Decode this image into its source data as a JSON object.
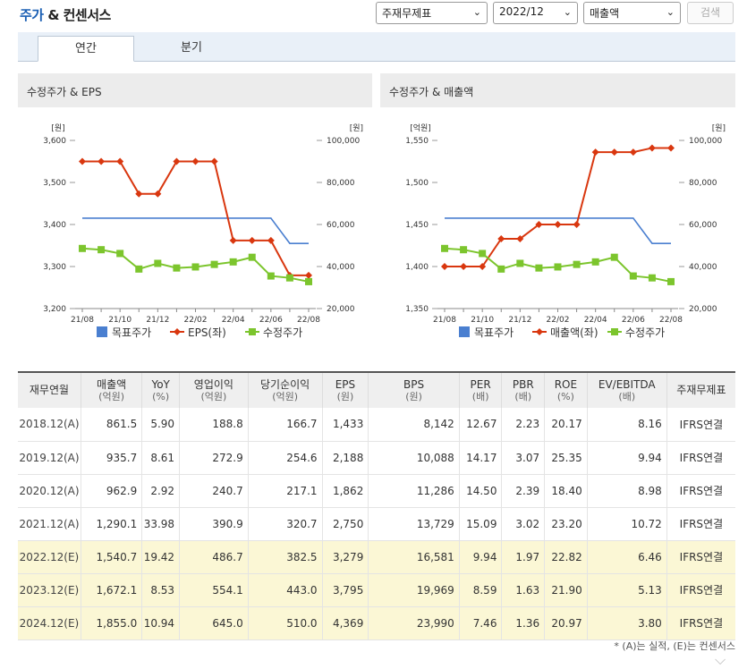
{
  "header": {
    "title_main": "주가",
    "title_rest": " & 컨센서스",
    "select_type": "주재무제표",
    "select_period": "2022/12",
    "select_item": "매출액",
    "search_label": "검색"
  },
  "tabs": [
    {
      "label": "연간"
    },
    {
      "label": "분기"
    }
  ],
  "colors": {
    "target": "#4a7fd0",
    "eps": "#d9370f",
    "price": "#7cc52d"
  },
  "chart_data": [
    {
      "type": "line",
      "title": "수정주가 & EPS",
      "x": [
        "21/08",
        "21/09",
        "21/10",
        "21/11",
        "21/12",
        "22/01",
        "22/02",
        "22/03",
        "22/04",
        "22/05",
        "22/06",
        "22/07",
        "22/08"
      ],
      "x_tick_labels": [
        "21/08",
        "21/10",
        "21/12",
        "22/02",
        "22/04",
        "22/06",
        "22/08"
      ],
      "left_axis": {
        "unit": "[원]",
        "ticks": [
          "3,600",
          "3,500",
          "3,400",
          "3,300",
          "3,200"
        ],
        "range": [
          3200,
          3600
        ]
      },
      "right_axis": {
        "unit": "[원]",
        "ticks": [
          "100,000",
          "80,000",
          "60,000",
          "40,000",
          "20,000"
        ],
        "range": [
          20000,
          100000
        ]
      },
      "series": [
        {
          "name": "목표주가",
          "axis": "right",
          "values": [
            63000,
            63000,
            63000,
            63000,
            63000,
            63000,
            63000,
            63000,
            63000,
            63000,
            63000,
            51000,
            51000
          ]
        },
        {
          "name": "EPS(좌)",
          "axis": "left",
          "values": [
            3550,
            3550,
            3550,
            3473,
            3473,
            3550,
            3550,
            3550,
            3362,
            3362,
            3362,
            3279,
            3279
          ]
        },
        {
          "name": "수정주가",
          "axis": "right",
          "values": [
            48600,
            48000,
            46200,
            38800,
            41500,
            39300,
            39800,
            41000,
            42200,
            44400,
            35500,
            34600,
            32800
          ]
        }
      ]
    },
    {
      "type": "line",
      "title": "수정주가 & 매출액",
      "x": [
        "21/08",
        "21/09",
        "21/10",
        "21/11",
        "21/12",
        "22/01",
        "22/02",
        "22/03",
        "22/04",
        "22/05",
        "22/06",
        "22/07",
        "22/08"
      ],
      "x_tick_labels": [
        "21/08",
        "21/10",
        "21/12",
        "22/02",
        "22/04",
        "22/06",
        "22/08"
      ],
      "left_axis": {
        "unit": "[억원]",
        "ticks": [
          "1,550",
          "1,500",
          "1,450",
          "1,400",
          "1,350"
        ],
        "range": [
          1350,
          1550
        ]
      },
      "right_axis": {
        "unit": "[원]",
        "ticks": [
          "100,000",
          "80,000",
          "60,000",
          "40,000",
          "20,000"
        ],
        "range": [
          20000,
          100000
        ]
      },
      "series": [
        {
          "name": "목표주가",
          "axis": "right",
          "values": [
            63000,
            63000,
            63000,
            63000,
            63000,
            63000,
            63000,
            63000,
            63000,
            63000,
            63000,
            51000,
            51000
          ]
        },
        {
          "name": "매출액(좌)",
          "axis": "left",
          "values": [
            1400,
            1400,
            1400,
            1433,
            1433,
            1450,
            1450,
            1450,
            1536,
            1536,
            1536,
            1541,
            1541
          ]
        },
        {
          "name": "수정주가",
          "axis": "right",
          "values": [
            48600,
            48000,
            46200,
            38800,
            41500,
            39300,
            39800,
            41000,
            42200,
            44400,
            35500,
            34600,
            32800
          ]
        }
      ]
    }
  ],
  "table": {
    "headers": [
      {
        "label": "재무연월",
        "unit": ""
      },
      {
        "label": "매출액",
        "unit": "(억원)"
      },
      {
        "label": "YoY",
        "unit": "(%)"
      },
      {
        "label": "영업이익",
        "unit": "(억원)"
      },
      {
        "label": "당기순이익",
        "unit": "(억원)"
      },
      {
        "label": "EPS",
        "unit": "(원)"
      },
      {
        "label": "BPS",
        "unit": "(원)"
      },
      {
        "label": "PER",
        "unit": "(배)"
      },
      {
        "label": "PBR",
        "unit": "(배)"
      },
      {
        "label": "ROE",
        "unit": "(%)"
      },
      {
        "label": "EV/EBITDA",
        "unit": "(배)"
      },
      {
        "label": "주재무제표",
        "unit": ""
      }
    ],
    "rows": [
      {
        "estimate": false,
        "cells": [
          "2018.12(A)",
          "861.5",
          "5.90",
          "188.8",
          "166.7",
          "1,433",
          "8,142",
          "12.67",
          "2.23",
          "20.17",
          "8.16",
          "IFRS연결"
        ]
      },
      {
        "estimate": false,
        "cells": [
          "2019.12(A)",
          "935.7",
          "8.61",
          "272.9",
          "254.6",
          "2,188",
          "10,088",
          "14.17",
          "3.07",
          "25.35",
          "9.94",
          "IFRS연결"
        ]
      },
      {
        "estimate": false,
        "cells": [
          "2020.12(A)",
          "962.9",
          "2.92",
          "240.7",
          "217.1",
          "1,862",
          "11,286",
          "14.50",
          "2.39",
          "18.40",
          "8.98",
          "IFRS연결"
        ]
      },
      {
        "estimate": false,
        "cells": [
          "2021.12(A)",
          "1,290.1",
          "33.98",
          "390.9",
          "320.7",
          "2,750",
          "13,729",
          "15.09",
          "3.02",
          "23.20",
          "10.72",
          "IFRS연결"
        ]
      },
      {
        "estimate": true,
        "cells": [
          "2022.12(E)",
          "1,540.7",
          "19.42",
          "486.7",
          "382.5",
          "3,279",
          "16,581",
          "9.94",
          "1.97",
          "22.82",
          "6.46",
          "IFRS연결"
        ]
      },
      {
        "estimate": true,
        "cells": [
          "2023.12(E)",
          "1,672.1",
          "8.53",
          "554.1",
          "443.0",
          "3,795",
          "19,969",
          "8.59",
          "1.63",
          "21.90",
          "5.13",
          "IFRS연결"
        ]
      },
      {
        "estimate": true,
        "cells": [
          "2024.12(E)",
          "1,855.0",
          "10.94",
          "645.0",
          "510.0",
          "4,369",
          "23,990",
          "7.46",
          "1.36",
          "20.97",
          "3.80",
          "IFRS연결"
        ]
      }
    ]
  },
  "footnote": "* (A)는 실적, (E)는 컨센서스"
}
